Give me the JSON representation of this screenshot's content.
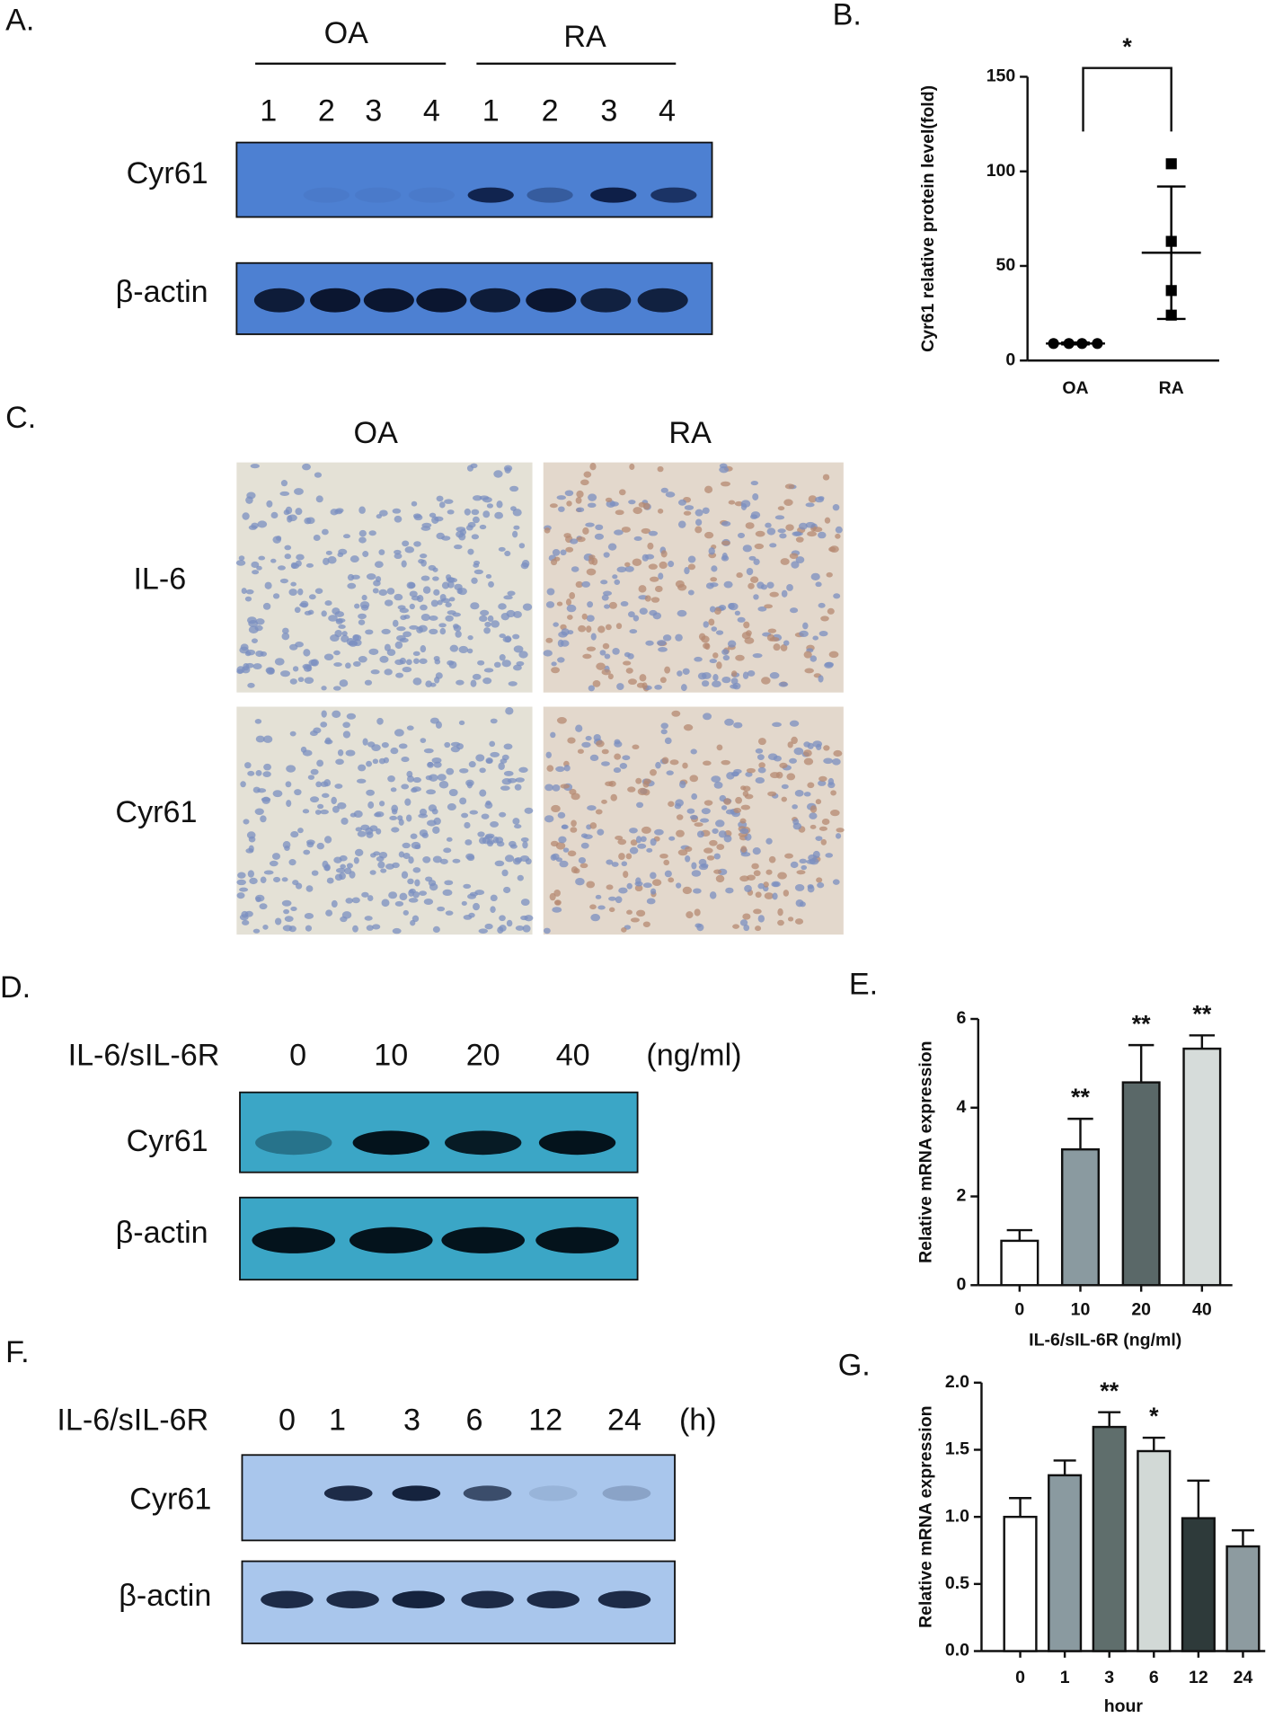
{
  "panels": {
    "A": {
      "label": "A.",
      "groups": [
        "OA",
        "RA"
      ],
      "lanes": [
        "1",
        "2",
        "3",
        "4",
        "1",
        "2",
        "3",
        "4"
      ],
      "rows": [
        "Cyr61",
        "β-actin"
      ]
    },
    "C": {
      "label": "C.",
      "columns": [
        "OA",
        "RA"
      ],
      "rows": [
        "IL-6",
        "Cyr61"
      ]
    },
    "D": {
      "label": "D.",
      "treatment": "IL-6/sIL-6R",
      "doses": [
        "0",
        "10",
        "20",
        "40"
      ],
      "unit": "(ng/ml)",
      "rows": [
        "Cyr61",
        "β-actin"
      ]
    },
    "F": {
      "label": "F.",
      "treatment": "IL-6/sIL-6R",
      "times": [
        "0",
        "1",
        "3",
        "6",
        "12",
        "24"
      ],
      "unit": "(h)",
      "rows": [
        "Cyr61",
        "β-actin"
      ]
    }
  },
  "chart_data": [
    {
      "type": "dot",
      "panel_label": "B.",
      "y_label": "Cyr61 relative protein level(fold)",
      "groups": [
        {
          "name": "OA",
          "marker": "circle",
          "values": [
            9,
            9,
            9,
            9
          ],
          "mean": 9,
          "sd": 0.5
        },
        {
          "name": "RA",
          "marker": "square",
          "values": [
            104,
            63,
            37,
            24
          ],
          "mean": 57,
          "sd": 35
        }
      ],
      "color": "#000000",
      "ylim": [
        0,
        150
      ],
      "yticks": [
        0,
        50,
        100,
        150
      ],
      "significance": "*"
    },
    {
      "type": "bar",
      "panel_label": "E.",
      "x_label": "IL-6/sIL-6R (ng/ml)",
      "y_label": "Relative mRNA expression",
      "categories": [
        "0",
        "10",
        "20",
        "40"
      ],
      "values": [
        1.0,
        3.06,
        4.57,
        5.33
      ],
      "errors": [
        0.24,
        0.69,
        0.84,
        0.3
      ],
      "colors": [
        "#ffffff",
        "#8a9aa0",
        "#5a6868",
        "#d6dcda"
      ],
      "significance": [
        null,
        "**",
        "**",
        "**"
      ],
      "ylim": [
        0,
        6
      ],
      "yticks": [
        0,
        2,
        4,
        6
      ]
    },
    {
      "type": "bar",
      "panel_label": "G.",
      "x_label": "hour",
      "y_label": "Relative mRNA expression",
      "categories": [
        "0",
        "1",
        "3",
        "6",
        "12",
        "24"
      ],
      "values": [
        1.0,
        1.31,
        1.67,
        1.49,
        0.99,
        0.78
      ],
      "errors": [
        0.14,
        0.11,
        0.11,
        0.1,
        0.28,
        0.12
      ],
      "colors": [
        "#ffffff",
        "#8a9aa0",
        "#5f6e6c",
        "#d2d9d6",
        "#2e3a3a",
        "#8d9ba0"
      ],
      "significance": [
        null,
        null,
        "**",
        "*",
        null,
        null
      ],
      "ylim": [
        0,
        2
      ],
      "yticks": [
        {
          "value": 0,
          "label": "0.0"
        },
        {
          "value": 0.5,
          "label": "0.5"
        },
        {
          "value": 1,
          "label": "1.0"
        },
        {
          "value": 1.5,
          "label": "1.5"
        },
        {
          "value": 2,
          "label": "2.0"
        }
      ]
    }
  ]
}
